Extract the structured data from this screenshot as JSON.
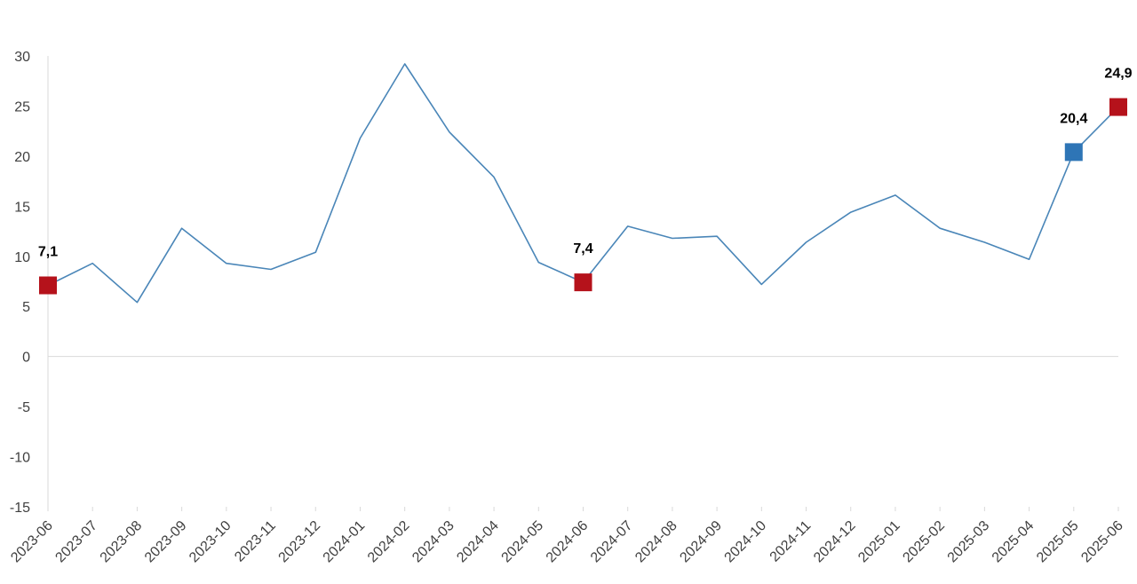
{
  "chart_data": {
    "type": "line",
    "title": "",
    "xlabel": "",
    "ylabel": "",
    "ylim": [
      -15,
      30
    ],
    "yticks": [
      30,
      25,
      20,
      15,
      10,
      5,
      0,
      -5,
      -10,
      -15
    ],
    "ytick_labels": [
      "30",
      "25",
      "20",
      "15",
      "10",
      "5",
      "0",
      "-5",
      "-10",
      "-15"
    ],
    "categories": [
      "2023-06",
      "2023-07",
      "2023-08",
      "2023-09",
      "2023-10",
      "2023-11",
      "2023-12",
      "2024-01",
      "2024-02",
      "2024-03",
      "2024-04",
      "2024-05",
      "2024-06",
      "2024-07",
      "2024-08",
      "2024-09",
      "2024-10",
      "2024-11",
      "2024-12",
      "2025-01",
      "2025-02",
      "2025-03",
      "2025-04",
      "2025-05",
      "2025-06"
    ],
    "series": [
      {
        "values": [
          7.1,
          9.3,
          5.4,
          12.8,
          9.3,
          8.7,
          10.4,
          21.8,
          29.2,
          22.4,
          17.9,
          9.4,
          7.4,
          13.0,
          11.8,
          12.0,
          7.2,
          11.4,
          14.4,
          16.1,
          12.8,
          11.4,
          9.7,
          20.4,
          24.9
        ],
        "color": "#4a86b8"
      }
    ],
    "highlighted_points": [
      {
        "index": 0,
        "label": "7,1",
        "color": "#b5121b"
      },
      {
        "index": 12,
        "label": "7,4",
        "color": "#b5121b"
      },
      {
        "index": 23,
        "label": "20,4",
        "color": "#2e75b6"
      },
      {
        "index": 24,
        "label": "24,9",
        "color": "#b5121b"
      }
    ],
    "grid": false,
    "legend": "none",
    "zero_line": true
  }
}
